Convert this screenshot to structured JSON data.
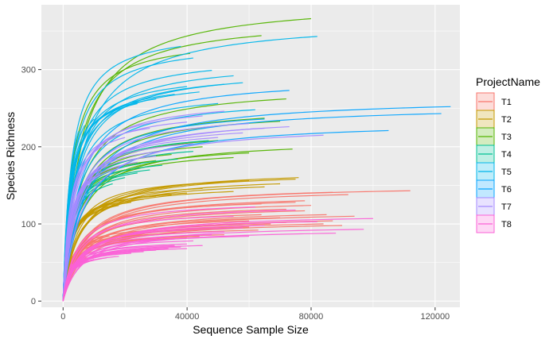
{
  "chart_data": {
    "type": "line",
    "title": "",
    "xlabel": "Sequence Sample Size",
    "ylabel": "Species Richness",
    "xlim": [
      -7000,
      128000
    ],
    "ylim": [
      -8,
      384
    ],
    "x_ticks": [
      0,
      40000,
      80000,
      120000
    ],
    "x_tick_labels": [
      "0",
      "40000",
      "80000",
      "120000"
    ],
    "y_ticks": [
      0,
      100,
      200,
      300
    ],
    "y_tick_labels": [
      "0",
      "100",
      "200",
      "300"
    ],
    "grid": true,
    "legend": {
      "title": "ProjectName",
      "placement": "right"
    },
    "series": [
      {
        "name": "T1",
        "color": "#F8766D",
        "curves": [
          [
            112000,
            143
          ],
          [
            87000,
            141
          ],
          [
            92000,
            138
          ],
          [
            78000,
            130
          ],
          [
            75000,
            128
          ],
          [
            64000,
            126
          ],
          [
            80000,
            124
          ],
          [
            72000,
            119
          ],
          [
            94000,
            110
          ],
          [
            78000,
            117
          ],
          [
            85000,
            112
          ],
          [
            70000,
            108
          ],
          [
            64000,
            112
          ],
          [
            87000,
            104
          ],
          [
            60000,
            104
          ],
          [
            67000,
            100
          ],
          [
            72000,
            102
          ],
          [
            84000,
            100
          ],
          [
            90000,
            98
          ],
          [
            60000,
            96
          ],
          [
            55000,
            94
          ],
          [
            63000,
            92
          ],
          [
            48000,
            90
          ],
          [
            52000,
            86
          ],
          [
            44000,
            84
          ],
          [
            40000,
            82
          ],
          [
            36000,
            88
          ],
          [
            30000,
            92
          ],
          [
            25000,
            86
          ],
          [
            20000,
            80
          ],
          [
            15000,
            84
          ],
          [
            10000,
            78
          ],
          [
            6000,
            70
          ],
          [
            3000,
            64
          ]
        ]
      },
      {
        "name": "T2",
        "color": "#C49A00",
        "curves": [
          [
            76000,
            160
          ],
          [
            75000,
            158
          ],
          [
            60000,
            156
          ],
          [
            70000,
            152
          ],
          [
            50000,
            154
          ],
          [
            65000,
            148
          ],
          [
            45000,
            146
          ],
          [
            55000,
            142
          ],
          [
            40000,
            140
          ],
          [
            35000,
            138
          ],
          [
            30000,
            136
          ],
          [
            26000,
            132
          ],
          [
            22000,
            128
          ],
          [
            18000,
            124
          ],
          [
            14000,
            120
          ],
          [
            10000,
            116
          ],
          [
            7000,
            110
          ],
          [
            5000,
            104
          ],
          [
            4000,
            98
          ],
          [
            3000,
            92
          ],
          [
            2000,
            88
          ]
        ]
      },
      {
        "name": "T3",
        "color": "#53B400",
        "curves": [
          [
            80000,
            366
          ],
          [
            64000,
            344
          ],
          [
            41000,
            321
          ],
          [
            72000,
            262
          ],
          [
            65000,
            237
          ],
          [
            70000,
            233
          ],
          [
            74000,
            197
          ],
          [
            60000,
            192
          ],
          [
            50000,
            208
          ],
          [
            45000,
            200
          ],
          [
            55000,
            186
          ],
          [
            35000,
            190
          ],
          [
            30000,
            182
          ],
          [
            25000,
            178
          ],
          [
            20000,
            170
          ],
          [
            15000,
            162
          ],
          [
            10000,
            150
          ],
          [
            8000,
            150
          ],
          [
            6000,
            145
          ],
          [
            12000,
            168
          ]
        ]
      },
      {
        "name": "T4",
        "color": "#00C094",
        "curves": [
          [
            47000,
            208
          ],
          [
            42000,
            194
          ],
          [
            37000,
            184
          ],
          [
            32000,
            176
          ],
          [
            28000,
            170
          ],
          [
            24000,
            166
          ],
          [
            20000,
            160
          ],
          [
            16000,
            152
          ],
          [
            12000,
            146
          ],
          [
            9000,
            140
          ],
          [
            6000,
            132
          ],
          [
            4000,
            124
          ]
        ]
      },
      {
        "name": "T5",
        "color": "#00B6EB",
        "curves": [
          [
            82000,
            343
          ],
          [
            48000,
            299
          ],
          [
            55000,
            292
          ],
          [
            58000,
            283
          ],
          [
            52000,
            281
          ],
          [
            40000,
            278
          ],
          [
            44000,
            271
          ],
          [
            36000,
            268
          ],
          [
            30000,
            262
          ],
          [
            24000,
            256
          ],
          [
            18000,
            250
          ],
          [
            14000,
            242
          ],
          [
            10000,
            236
          ],
          [
            7000,
            228
          ],
          [
            5000,
            220
          ],
          [
            42000,
            315
          ],
          [
            38000,
            330
          ],
          [
            62000,
            248
          ],
          [
            50000,
            256
          ]
        ]
      },
      {
        "name": "T6",
        "color": "#06A4FF",
        "curves": [
          [
            125000,
            252
          ],
          [
            122000,
            243
          ],
          [
            105000,
            221
          ],
          [
            73000,
            273
          ],
          [
            65000,
            236
          ]
        ]
      },
      {
        "name": "T7",
        "color": "#A58AFF",
        "curves": [
          [
            73000,
            226
          ],
          [
            84000,
            215
          ],
          [
            65000,
            224
          ],
          [
            58000,
            218
          ],
          [
            50000,
            212
          ],
          [
            42000,
            204
          ],
          [
            36000,
            196
          ],
          [
            30000,
            188
          ],
          [
            24000,
            180
          ],
          [
            18000,
            172
          ],
          [
            12000,
            164
          ],
          [
            8000,
            156
          ],
          [
            45000,
            240
          ],
          [
            52000,
            246
          ],
          [
            40000,
            232
          ],
          [
            60000,
            230
          ],
          [
            28000,
            224
          ],
          [
            20000,
            212
          ]
        ]
      },
      {
        "name": "T8",
        "color": "#FB61D7",
        "curves": [
          [
            97000,
            93
          ],
          [
            88000,
            88
          ],
          [
            100000,
            107
          ],
          [
            82000,
            103
          ],
          [
            65000,
            98
          ],
          [
            58000,
            95
          ],
          [
            52000,
            90
          ],
          [
            48000,
            86
          ],
          [
            44000,
            82
          ],
          [
            42000,
            78
          ],
          [
            40000,
            74
          ],
          [
            38000,
            70
          ],
          [
            34000,
            68
          ],
          [
            30000,
            66
          ],
          [
            26000,
            64
          ],
          [
            22000,
            62
          ],
          [
            18000,
            58
          ],
          [
            14000,
            56
          ],
          [
            10000,
            54
          ],
          [
            6000,
            50
          ],
          [
            3000,
            48
          ],
          [
            75000,
            118
          ],
          [
            55000,
            110
          ],
          [
            62000,
            122
          ],
          [
            36000,
            72
          ],
          [
            45000,
            72
          ],
          [
            40000,
            68
          ],
          [
            60000,
            84
          ]
        ]
      }
    ]
  }
}
